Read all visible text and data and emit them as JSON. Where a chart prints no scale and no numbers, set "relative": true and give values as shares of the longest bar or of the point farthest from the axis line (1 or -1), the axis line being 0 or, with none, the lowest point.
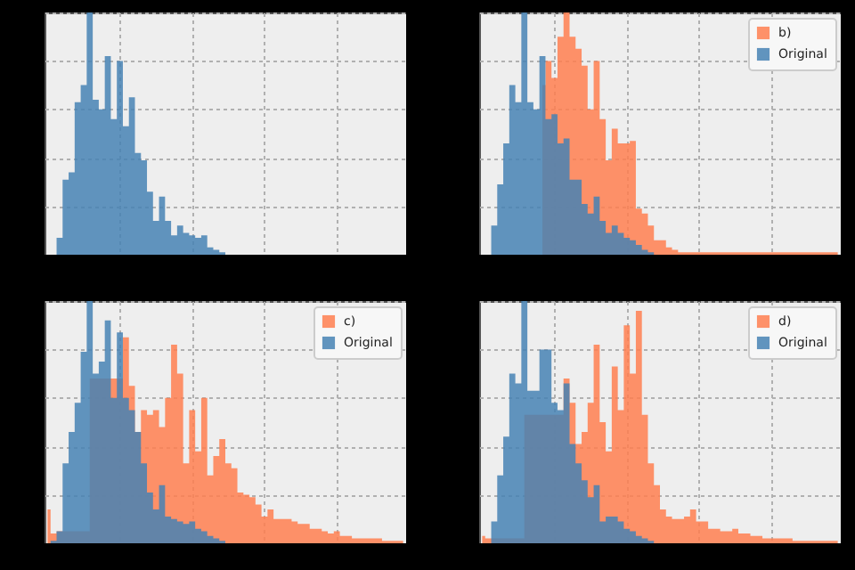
{
  "chart_data": [
    {
      "type": "area",
      "relative": true,
      "grid": true,
      "categories": [
        null,
        null,
        null,
        null,
        null,
        null,
        null,
        null,
        null,
        null,
        null,
        null,
        null,
        null,
        null,
        null,
        null,
        null,
        null,
        null,
        null,
        null,
        null,
        null,
        null,
        null,
        null,
        null,
        null,
        null,
        null,
        null,
        null,
        null,
        null,
        null,
        null,
        null,
        null,
        null,
        null,
        null,
        null,
        null,
        null,
        null,
        null,
        null,
        null,
        null,
        null,
        null,
        null,
        null,
        null,
        null,
        null,
        null,
        null,
        null
      ],
      "series": [
        {
          "color": "#4682b4",
          "values": [
            0,
            0,
            0.07,
            0.31,
            0.34,
            0.63,
            0.7,
            1,
            0.64,
            0.6,
            0.82,
            0.56,
            0.8,
            0.53,
            0.65,
            0.42,
            0.39,
            0.26,
            0.14,
            0.24,
            0.14,
            0.08,
            0.12,
            0.09,
            0.08,
            0.07,
            0.08,
            0.03,
            0.02,
            0.01,
            0,
            0,
            0,
            0,
            0,
            0,
            0,
            0,
            0,
            0,
            0,
            0,
            0,
            0,
            0,
            0,
            0,
            0,
            0,
            0,
            0,
            0,
            0,
            0,
            0,
            0,
            0,
            0,
            0,
            0
          ]
        }
      ]
    },
    {
      "type": "area",
      "relative": true,
      "grid": true,
      "legend": "top right",
      "categories": [
        null,
        null,
        null,
        null,
        null,
        null,
        null,
        null,
        null,
        null,
        null,
        null,
        null,
        null,
        null,
        null,
        null,
        null,
        null,
        null,
        null,
        null,
        null,
        null,
        null,
        null,
        null,
        null,
        null,
        null,
        null,
        null,
        null,
        null,
        null,
        null,
        null,
        null,
        null,
        null,
        null,
        null,
        null,
        null,
        null,
        null,
        null,
        null,
        null,
        null,
        null,
        null,
        null,
        null,
        null,
        null,
        null,
        null,
        null,
        null
      ],
      "series": [
        {
          "name": "b)",
          "color": "#ff7f50",
          "values": [
            null,
            null,
            null,
            null,
            null,
            null,
            null,
            null,
            null,
            null,
            0.7,
            0.8,
            0.73,
            0.9,
            1,
            0.9,
            0.85,
            0.78,
            0.6,
            0.8,
            0.56,
            0.39,
            0.52,
            0.46,
            0.46,
            0.47,
            0.19,
            0.17,
            0.12,
            0.06,
            0.06,
            0.03,
            0.02,
            0.01,
            0.01,
            0.01,
            0.01,
            0.01,
            0.01,
            0.01,
            0.01,
            0.01,
            0.01,
            0.01,
            0.01,
            0.01,
            0.01,
            0.01,
            0.01,
            0.01,
            0.01,
            0.01,
            0.01,
            0.01,
            0.01,
            0.01,
            0.01,
            0.01,
            0.01,
            0.01
          ]
        },
        {
          "name": "Original",
          "color": "#4682b4",
          "values": [
            0,
            0,
            0.12,
            0.29,
            0.46,
            0.7,
            0.63,
            1,
            0.63,
            0.6,
            0.82,
            0.56,
            0.58,
            0.46,
            0.48,
            0.31,
            0.31,
            0.21,
            0.17,
            0.24,
            0.14,
            0.09,
            0.12,
            0.09,
            0.07,
            0.06,
            0.04,
            0.02,
            0.01,
            0,
            0,
            0,
            0,
            0,
            0,
            0,
            0,
            0,
            0,
            0,
            0,
            0,
            0,
            0,
            0,
            0,
            0,
            0,
            0,
            0,
            0,
            0,
            0,
            0,
            0,
            0,
            0,
            0,
            0,
            0
          ]
        }
      ]
    },
    {
      "type": "area",
      "relative": true,
      "grid": true,
      "legend": "top right",
      "categories": [
        null,
        null,
        null,
        null,
        null,
        null,
        null,
        null,
        null,
        null,
        null,
        null,
        null,
        null,
        null,
        null,
        null,
        null,
        null,
        null,
        null,
        null,
        null,
        null,
        null,
        null,
        null,
        null,
        null,
        null,
        null,
        null,
        null,
        null,
        null,
        null,
        null,
        null,
        null,
        null,
        null,
        null,
        null,
        null,
        null,
        null,
        null,
        null,
        null,
        null,
        null,
        null,
        null,
        null,
        null,
        null,
        null,
        null,
        null,
        null
      ],
      "series": [
        {
          "name": "c)",
          "color": "#ff7f50",
          "values": [
            0.14,
            0.04,
            0.05,
            null,
            null,
            null,
            null,
            null,
            null,
            null,
            null,
            null,
            0.68,
            0.85,
            0.65,
            0.46,
            0.55,
            0.53,
            0.55,
            0.48,
            0.6,
            0.82,
            0.7,
            0.33,
            0.55,
            0.38,
            0.6,
            0.28,
            0.36,
            0.43,
            0.33,
            0.31,
            0.21,
            0.2,
            0.19,
            0.16,
            0.11,
            0.14,
            0.1,
            0.1,
            0.1,
            0.09,
            0.08,
            0.08,
            0.06,
            0.06,
            0.05,
            0.04,
            0.05,
            0.03,
            0.03,
            0.02,
            0.02,
            0.02,
            0.02,
            0.02,
            0.01,
            0.01,
            0.01,
            0.01
          ]
        },
        {
          "name": "Original",
          "color": "#4682b4",
          "values": [
            0,
            0.01,
            0.05,
            0.33,
            0.46,
            0.58,
            0.79,
            1,
            0.7,
            0.75,
            0.92,
            0.6,
            0.87,
            0.6,
            0.55,
            0.46,
            0.33,
            0.21,
            0.14,
            0.24,
            0.11,
            0.1,
            0.09,
            0.08,
            0.09,
            0.06,
            0.05,
            0.03,
            0.02,
            0.01,
            0,
            0,
            0,
            0,
            0,
            0,
            0,
            0,
            0,
            0,
            0,
            0,
            0,
            0,
            0,
            0,
            0,
            0,
            0,
            0,
            0,
            0,
            0,
            0,
            0,
            0,
            0,
            0,
            0,
            0
          ]
        }
      ]
    },
    {
      "type": "area",
      "relative": true,
      "grid": true,
      "legend": "top right",
      "categories": [
        null,
        null,
        null,
        null,
        null,
        null,
        null,
        null,
        null,
        null,
        null,
        null,
        null,
        null,
        null,
        null,
        null,
        null,
        null,
        null,
        null,
        null,
        null,
        null,
        null,
        null,
        null,
        null,
        null,
        null,
        null,
        null,
        null,
        null,
        null,
        null,
        null,
        null,
        null,
        null,
        null,
        null,
        null,
        null,
        null,
        null,
        null,
        null,
        null,
        null,
        null,
        null,
        null,
        null,
        null,
        null,
        null,
        null,
        null,
        null
      ],
      "series": [
        {
          "name": "d)",
          "color": "#ff7f50",
          "values": [
            0.03,
            0.02,
            null,
            null,
            null,
            null,
            null,
            null,
            null,
            null,
            null,
            null,
            null,
            0.53,
            0.68,
            0.58,
            0.41,
            0.46,
            0.58,
            0.82,
            0.5,
            0.38,
            0.73,
            0.55,
            0.9,
            0.7,
            0.96,
            0.53,
            0.33,
            0.24,
            0.14,
            0.11,
            0.1,
            0.1,
            0.11,
            0.14,
            0.09,
            0.09,
            0.06,
            0.06,
            0.05,
            0.05,
            0.06,
            0.04,
            0.04,
            0.03,
            0.03,
            0.02,
            0.02,
            0.02,
            0.02,
            0.02,
            0.01,
            0.01,
            0.01,
            0.01,
            0.01,
            0.01,
            0.01,
            0.01
          ]
        },
        {
          "name": "Original",
          "color": "#4682b4",
          "values": [
            0,
            0,
            0.09,
            0.28,
            0.44,
            0.7,
            0.66,
            1,
            0.63,
            0.63,
            0.8,
            0.8,
            0.58,
            0.55,
            0.66,
            0.41,
            0.33,
            0.26,
            0.19,
            0.24,
            0.09,
            0.11,
            0.11,
            0.09,
            0.06,
            0.05,
            0.03,
            0.02,
            0.01,
            0,
            0,
            0,
            0,
            0,
            0,
            0,
            0,
            0,
            0,
            0,
            0,
            0,
            0,
            0,
            0,
            0,
            0,
            0,
            0,
            0,
            0,
            0,
            0,
            0,
            0,
            0,
            0,
            0,
            0,
            0
          ]
        }
      ]
    }
  ]
}
